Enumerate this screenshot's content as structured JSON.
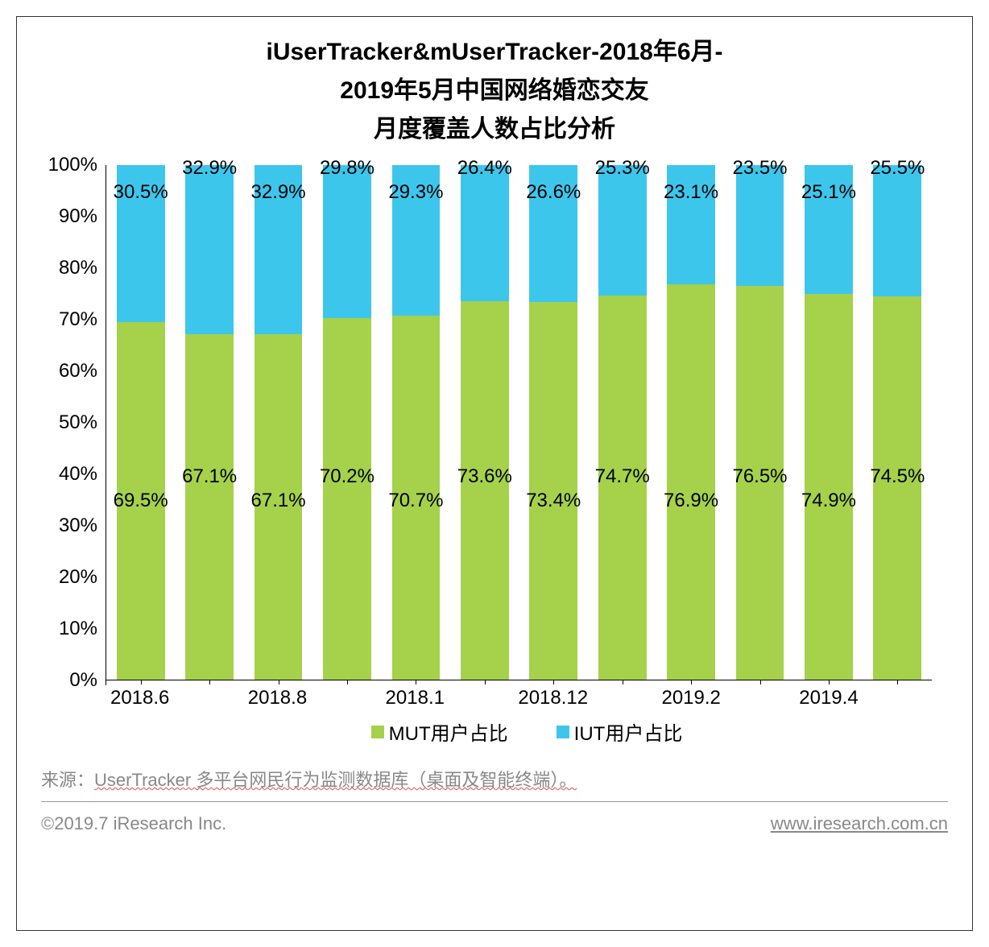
{
  "chart": {
    "type": "stacked-bar-100",
    "title_line1": "iUserTracker&mUserTracker-2018年6月-",
    "title_line2": "2019年5月中国网络婚恋交友",
    "title_line3": "月度覆盖人数占比分析",
    "title_fontsize": 30,
    "categories": [
      "2018.6",
      "",
      "2018.8",
      "",
      "2018.1",
      "",
      "2018.12",
      "",
      "2019.2",
      "",
      "2019.4",
      ""
    ],
    "x_label_fontsize": 24,
    "y_ticks": [
      0,
      10,
      20,
      30,
      40,
      50,
      60,
      70,
      80,
      90,
      100
    ],
    "y_tick_suffix": "%",
    "y_tick_fontsize": 24,
    "ylim": [
      0,
      100
    ],
    "series": [
      {
        "name": "MUT用户占比",
        "color": "#a5d14b",
        "values": [
          69.5,
          67.1,
          67.1,
          70.2,
          70.7,
          73.6,
          73.4,
          74.7,
          76.9,
          76.5,
          74.9,
          74.5
        ]
      },
      {
        "name": "IUT用户占比",
        "color": "#3dc6ec",
        "values": [
          30.5,
          32.9,
          32.9,
          29.8,
          29.3,
          26.4,
          26.6,
          25.3,
          23.1,
          23.5,
          25.1,
          25.5
        ]
      }
    ],
    "data_label_fontsize": 24,
    "legend_fontsize": 24,
    "mut_label_y_offsets": [
      0,
      -30,
      0,
      -30,
      0,
      -30,
      0,
      -30,
      0,
      -30,
      0,
      -30
    ],
    "iut_label_y_offsets": [
      0,
      -30,
      0,
      -30,
      0,
      -30,
      0,
      -30,
      0,
      -30,
      0,
      -30
    ],
    "background_color": "#ffffff",
    "axis_color": "#000000"
  },
  "source": {
    "prefix": "来源：",
    "text": "UserTracker 多平台网民行为监测数据库（桌面及智能终端）。",
    "fontsize": 22
  },
  "footer": {
    "copyright": "©2019.7 iResearch Inc.",
    "url": "www.iresearch.com.cn",
    "fontsize": 22
  }
}
